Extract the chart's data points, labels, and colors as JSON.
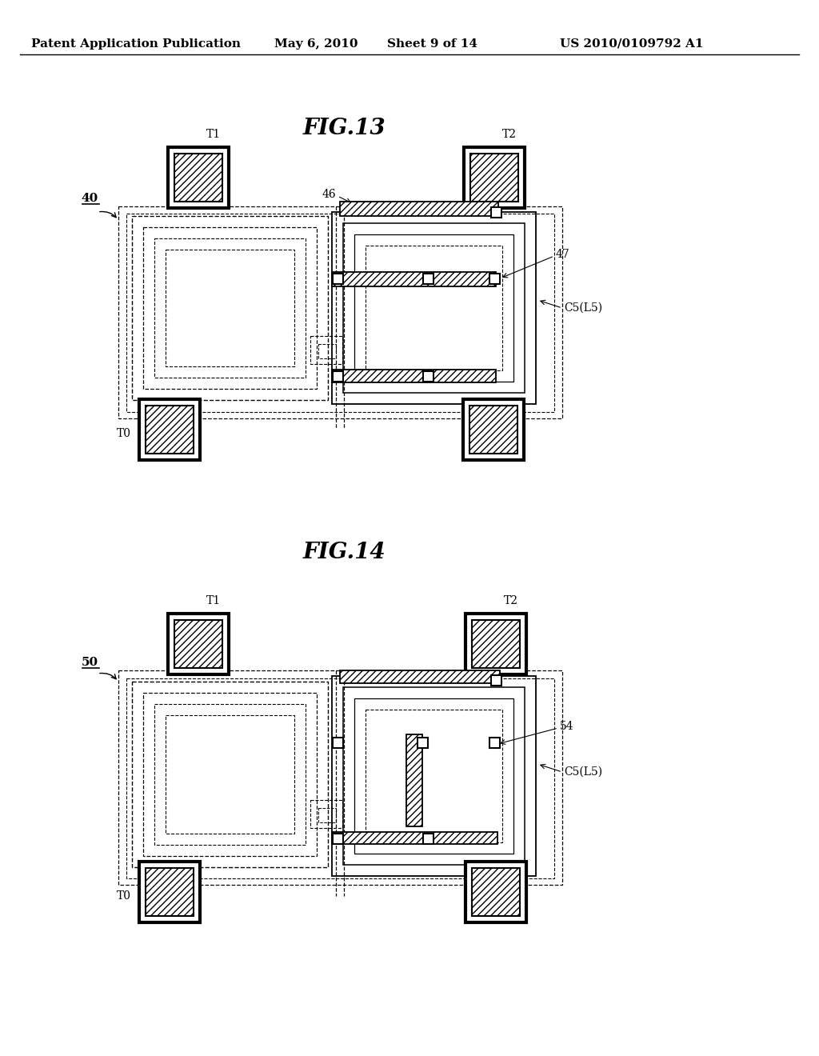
{
  "bg_color": "#ffffff",
  "header_text": "Patent Application Publication",
  "header_date": "May 6, 2010",
  "header_sheet": "Sheet 9 of 14",
  "header_patent": "US 2010/0109792 A1",
  "fig13_title": "FIG.13",
  "fig14_title": "FIG.14",
  "label_40": "40",
  "label_50": "50",
  "label_46": "46",
  "label_47": "47",
  "label_54": "54",
  "label_C5L5": "C5(L5)"
}
